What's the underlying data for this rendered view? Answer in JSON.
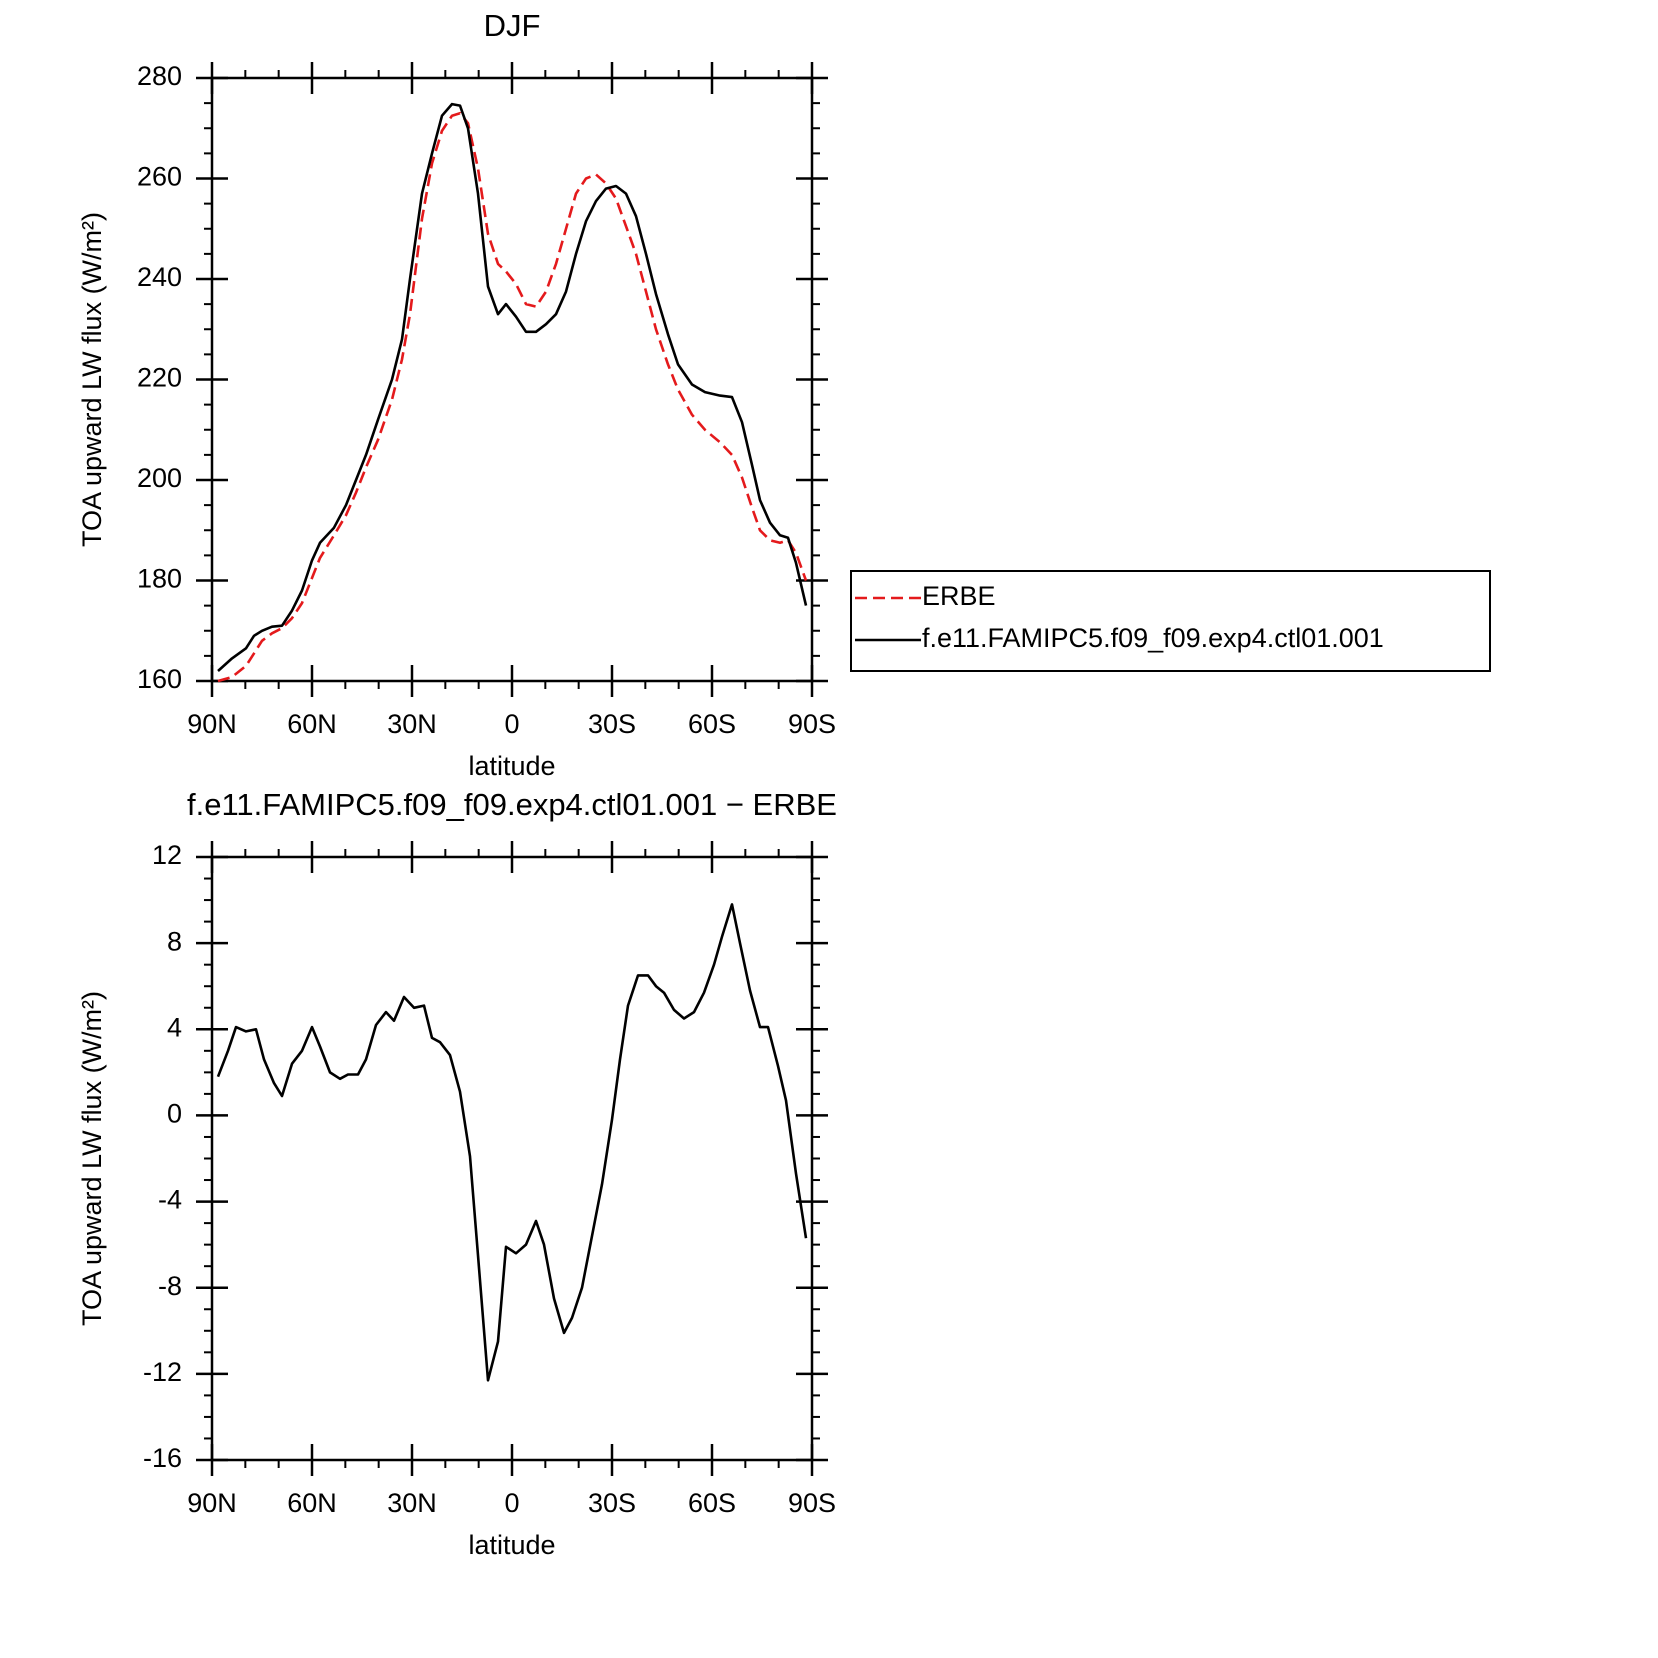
{
  "chart_data": [
    {
      "type": "line",
      "title": "DJF",
      "xlabel": "latitude",
      "ylabel": "TOA upward LW flux (W/m²)",
      "legend": "right",
      "x": [
        88.2,
        84,
        79.8,
        77.4,
        75,
        72,
        69,
        66,
        63,
        60,
        57.6,
        53.4,
        49.8,
        46.8,
        43.8,
        40.2,
        36,
        33,
        30.6,
        27,
        24,
        21,
        18,
        15.6,
        13.2,
        10.2,
        7.2,
        4.2,
        1.8,
        -1.2,
        -4.2,
        -7.2,
        -10.2,
        -13.2,
        -16.2,
        -19.2,
        -22.2,
        -25.2,
        -28.2,
        -31.2,
        -34.2,
        -37.2,
        -40.2,
        -43.2,
        -46.8,
        -49.8,
        -54,
        -57.9,
        -62.4,
        -66,
        -69,
        -72,
        -74.4,
        -77.4,
        -80.4,
        -82.8,
        -85.2,
        -88.2
      ],
      "series": [
        {
          "name": "ERBE",
          "color": "#e41a1c",
          "style": "dashed",
          "values": [
            160,
            160.8,
            163,
            165.5,
            168,
            169.5,
            170.5,
            172.5,
            175.5,
            180.5,
            184.5,
            189,
            193,
            197.5,
            202.5,
            208,
            216,
            224,
            233,
            252,
            263,
            269.5,
            272.5,
            273,
            271,
            262,
            249,
            243,
            241.5,
            239,
            235,
            234.5,
            237.5,
            243,
            250,
            257,
            260,
            260.8,
            259,
            256,
            250.5,
            245,
            237.5,
            230,
            223,
            218,
            213,
            210,
            207.5,
            205,
            200.5,
            194.5,
            190,
            188,
            187.5,
            188,
            185.5,
            180
          ]
        },
        {
          "name": "f.e11.FAMIPC5.f09_f09.exp4.ctl01.001",
          "color": "#000000",
          "style": "solid",
          "values": [
            162,
            164.5,
            166.5,
            169,
            170,
            170.8,
            171,
            174,
            178,
            184,
            187.5,
            190.5,
            195,
            200,
            205,
            212,
            220,
            228,
            240,
            257,
            265,
            272.5,
            274.8,
            274.5,
            270,
            257,
            238.5,
            233,
            235,
            232.5,
            229.5,
            229.5,
            231,
            233,
            237.5,
            245,
            251.5,
            255.5,
            258,
            258.5,
            257,
            252.5,
            245,
            237,
            229,
            223,
            219,
            217.5,
            216.8,
            216.5,
            211.5,
            203,
            196,
            191.5,
            189,
            188.5,
            183.5,
            175
          ]
        }
      ],
      "xlim": [
        90,
        -90
      ],
      "xticks": [
        {
          "value": 90,
          "label": "90N"
        },
        {
          "value": 60,
          "label": "60N"
        },
        {
          "value": 30,
          "label": "30N"
        },
        0,
        {
          "value": -30,
          "label": "30S"
        },
        {
          "value": -60,
          "label": "60S"
        },
        {
          "value": -90,
          "label": "90S"
        }
      ],
      "ylim": [
        160,
        280
      ],
      "yticks": [
        160,
        180,
        200,
        220,
        240,
        260,
        280
      ]
    },
    {
      "type": "line",
      "title": "f.e11.FAMIPC5.f09_f09.exp4.ctl01.001 − ERBE",
      "xlabel": "latitude",
      "ylabel": "TOA upward LW flux (W/m²)",
      "x": [
        88.2,
        85.2,
        82.8,
        79.8,
        76.8,
        74.4,
        71.4,
        69,
        66,
        63,
        60,
        57.6,
        54.6,
        51.6,
        49.2,
        46.2,
        43.8,
        40.8,
        37.8,
        35.4,
        32.4,
        29.4,
        26.4,
        24,
        21.6,
        18.6,
        15.6,
        12.6,
        10.2,
        7.2,
        4.2,
        1.8,
        -1.2,
        -4.2,
        -7.2,
        -9.6,
        -12.6,
        -15.6,
        -18,
        -21,
        -24,
        -27,
        -30,
        -32.4,
        -34.8,
        -37.8,
        -40.8,
        -43.2,
        -45.6,
        -48.6,
        -51.6,
        -54.6,
        -57.6,
        -60.6,
        -63,
        -66,
        -68.4,
        -71.4,
        -74.4,
        -76.8,
        -79.8,
        -82.2,
        -85.2,
        -88.2
      ],
      "series": [
        {
          "color": "#000000",
          "style": "solid",
          "values": [
            1.8,
            3,
            4.1,
            3.9,
            4,
            2.6,
            1.5,
            0.9,
            2.4,
            3,
            4.1,
            3.2,
            2,
            1.7,
            1.9,
            1.9,
            2.6,
            4.2,
            4.8,
            4.4,
            5.5,
            5,
            5.1,
            3.6,
            3.4,
            2.8,
            1.1,
            -1.9,
            -6.5,
            -12.3,
            -10.5,
            -6.1,
            -6.4,
            -6,
            -4.9,
            -6,
            -8.5,
            -10.1,
            -9.4,
            -8,
            -5.6,
            -3.2,
            -0.2,
            2.6,
            5.1,
            6.5,
            6.5,
            6,
            5.7,
            4.9,
            4.5,
            4.8,
            5.7,
            7,
            8.3,
            9.8,
            8,
            5.8,
            4.1,
            4.1,
            2.3,
            0.7,
            -2.7,
            -5.7
          ]
        }
      ],
      "xlim": [
        90,
        -90
      ],
      "xticks": [
        {
          "value": 90,
          "label": "90N"
        },
        {
          "value": 60,
          "label": "60N"
        },
        {
          "value": 30,
          "label": "30N"
        },
        0,
        {
          "value": -30,
          "label": "30S"
        },
        {
          "value": -60,
          "label": "60S"
        },
        {
          "value": -90,
          "label": "90S"
        }
      ],
      "ylim": [
        -16,
        12
      ],
      "yticks": [
        -16,
        -12,
        -8,
        -4,
        0,
        4,
        8,
        12
      ]
    }
  ]
}
